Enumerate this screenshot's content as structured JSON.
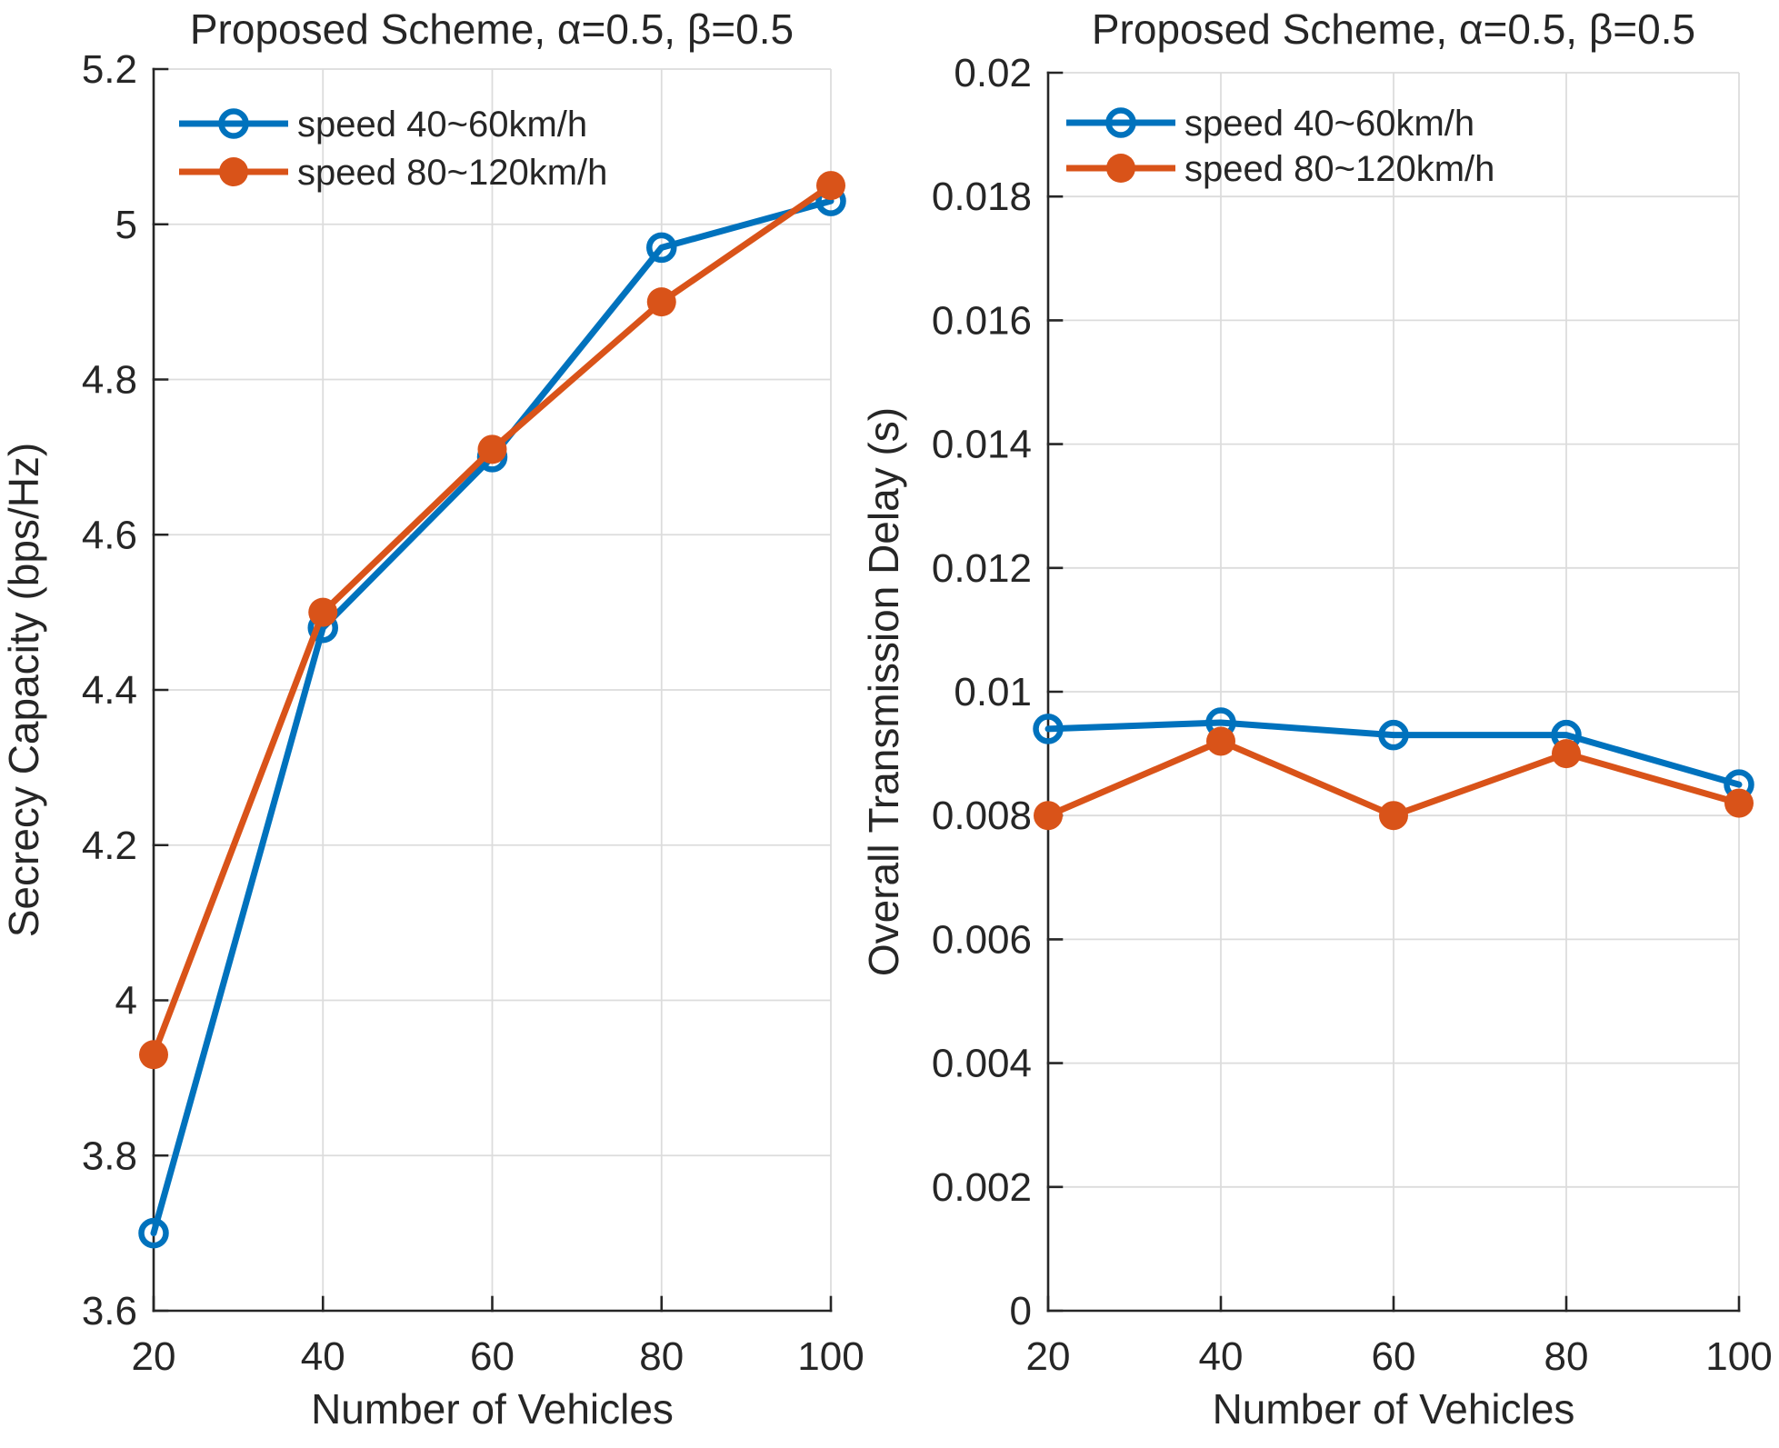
{
  "figure": {
    "background": "#ffffff",
    "text_color": "#262626",
    "axis_color": "#262626",
    "grid_color": "#DCDCDC"
  },
  "chart_data": [
    {
      "type": "line",
      "title": "Proposed Scheme, α=0.5, β=0.5",
      "xlabel": "Number of Vehicles",
      "ylabel": "Secrecy Capacity (bps/Hz)",
      "x": [
        20,
        40,
        60,
        80,
        100
      ],
      "xtick_labels": [
        "20",
        "40",
        "60",
        "80",
        "100"
      ],
      "xlim": [
        20,
        100
      ],
      "ylim": [
        3.6,
        5.2
      ],
      "ytick_values": [
        3.6,
        3.8,
        4.0,
        4.2,
        4.4,
        4.6,
        4.8,
        5.0,
        5.2
      ],
      "ytick_labels": [
        "3.6",
        "3.8",
        "4",
        "4.2",
        "4.4",
        "4.6",
        "4.8",
        "5",
        "5.2"
      ],
      "grid": true,
      "legend_position": "top-left",
      "series": [
        {
          "name": "speed 40~60km/h",
          "color": "#0072BD",
          "marker": "open-circle",
          "values": [
            3.7,
            4.48,
            4.7,
            4.97,
            5.03
          ]
        },
        {
          "name": "speed 80~120km/h",
          "color": "#D95319",
          "marker": "filled-circle",
          "values": [
            3.93,
            4.5,
            4.71,
            4.9,
            5.05
          ]
        }
      ]
    },
    {
      "type": "line",
      "title": "Proposed Scheme, α=0.5, β=0.5",
      "xlabel": "Number of Vehicles",
      "ylabel": "Overall Transmission Delay (s)",
      "x": [
        20,
        40,
        60,
        80,
        100
      ],
      "xtick_labels": [
        "20",
        "40",
        "60",
        "80",
        "100"
      ],
      "xlim": [
        20,
        100
      ],
      "ylim": [
        0,
        0.02
      ],
      "ytick_values": [
        0,
        0.002,
        0.004,
        0.006,
        0.008,
        0.01,
        0.012,
        0.014,
        0.016,
        0.018,
        0.02
      ],
      "ytick_labels": [
        "0",
        "0.002",
        "0.004",
        "0.006",
        "0.008",
        "0.01",
        "0.012",
        "0.014",
        "0.016",
        "0.018",
        "0.02"
      ],
      "grid": true,
      "legend_position": "top-left",
      "series": [
        {
          "name": "speed 40~60km/h",
          "color": "#0072BD",
          "marker": "open-circle",
          "values": [
            0.0094,
            0.0095,
            0.0093,
            0.0093,
            0.0085
          ]
        },
        {
          "name": "speed 80~120km/h",
          "color": "#D95319",
          "marker": "filled-circle",
          "values": [
            0.008,
            0.0092,
            0.008,
            0.009,
            0.0082
          ]
        }
      ]
    }
  ]
}
